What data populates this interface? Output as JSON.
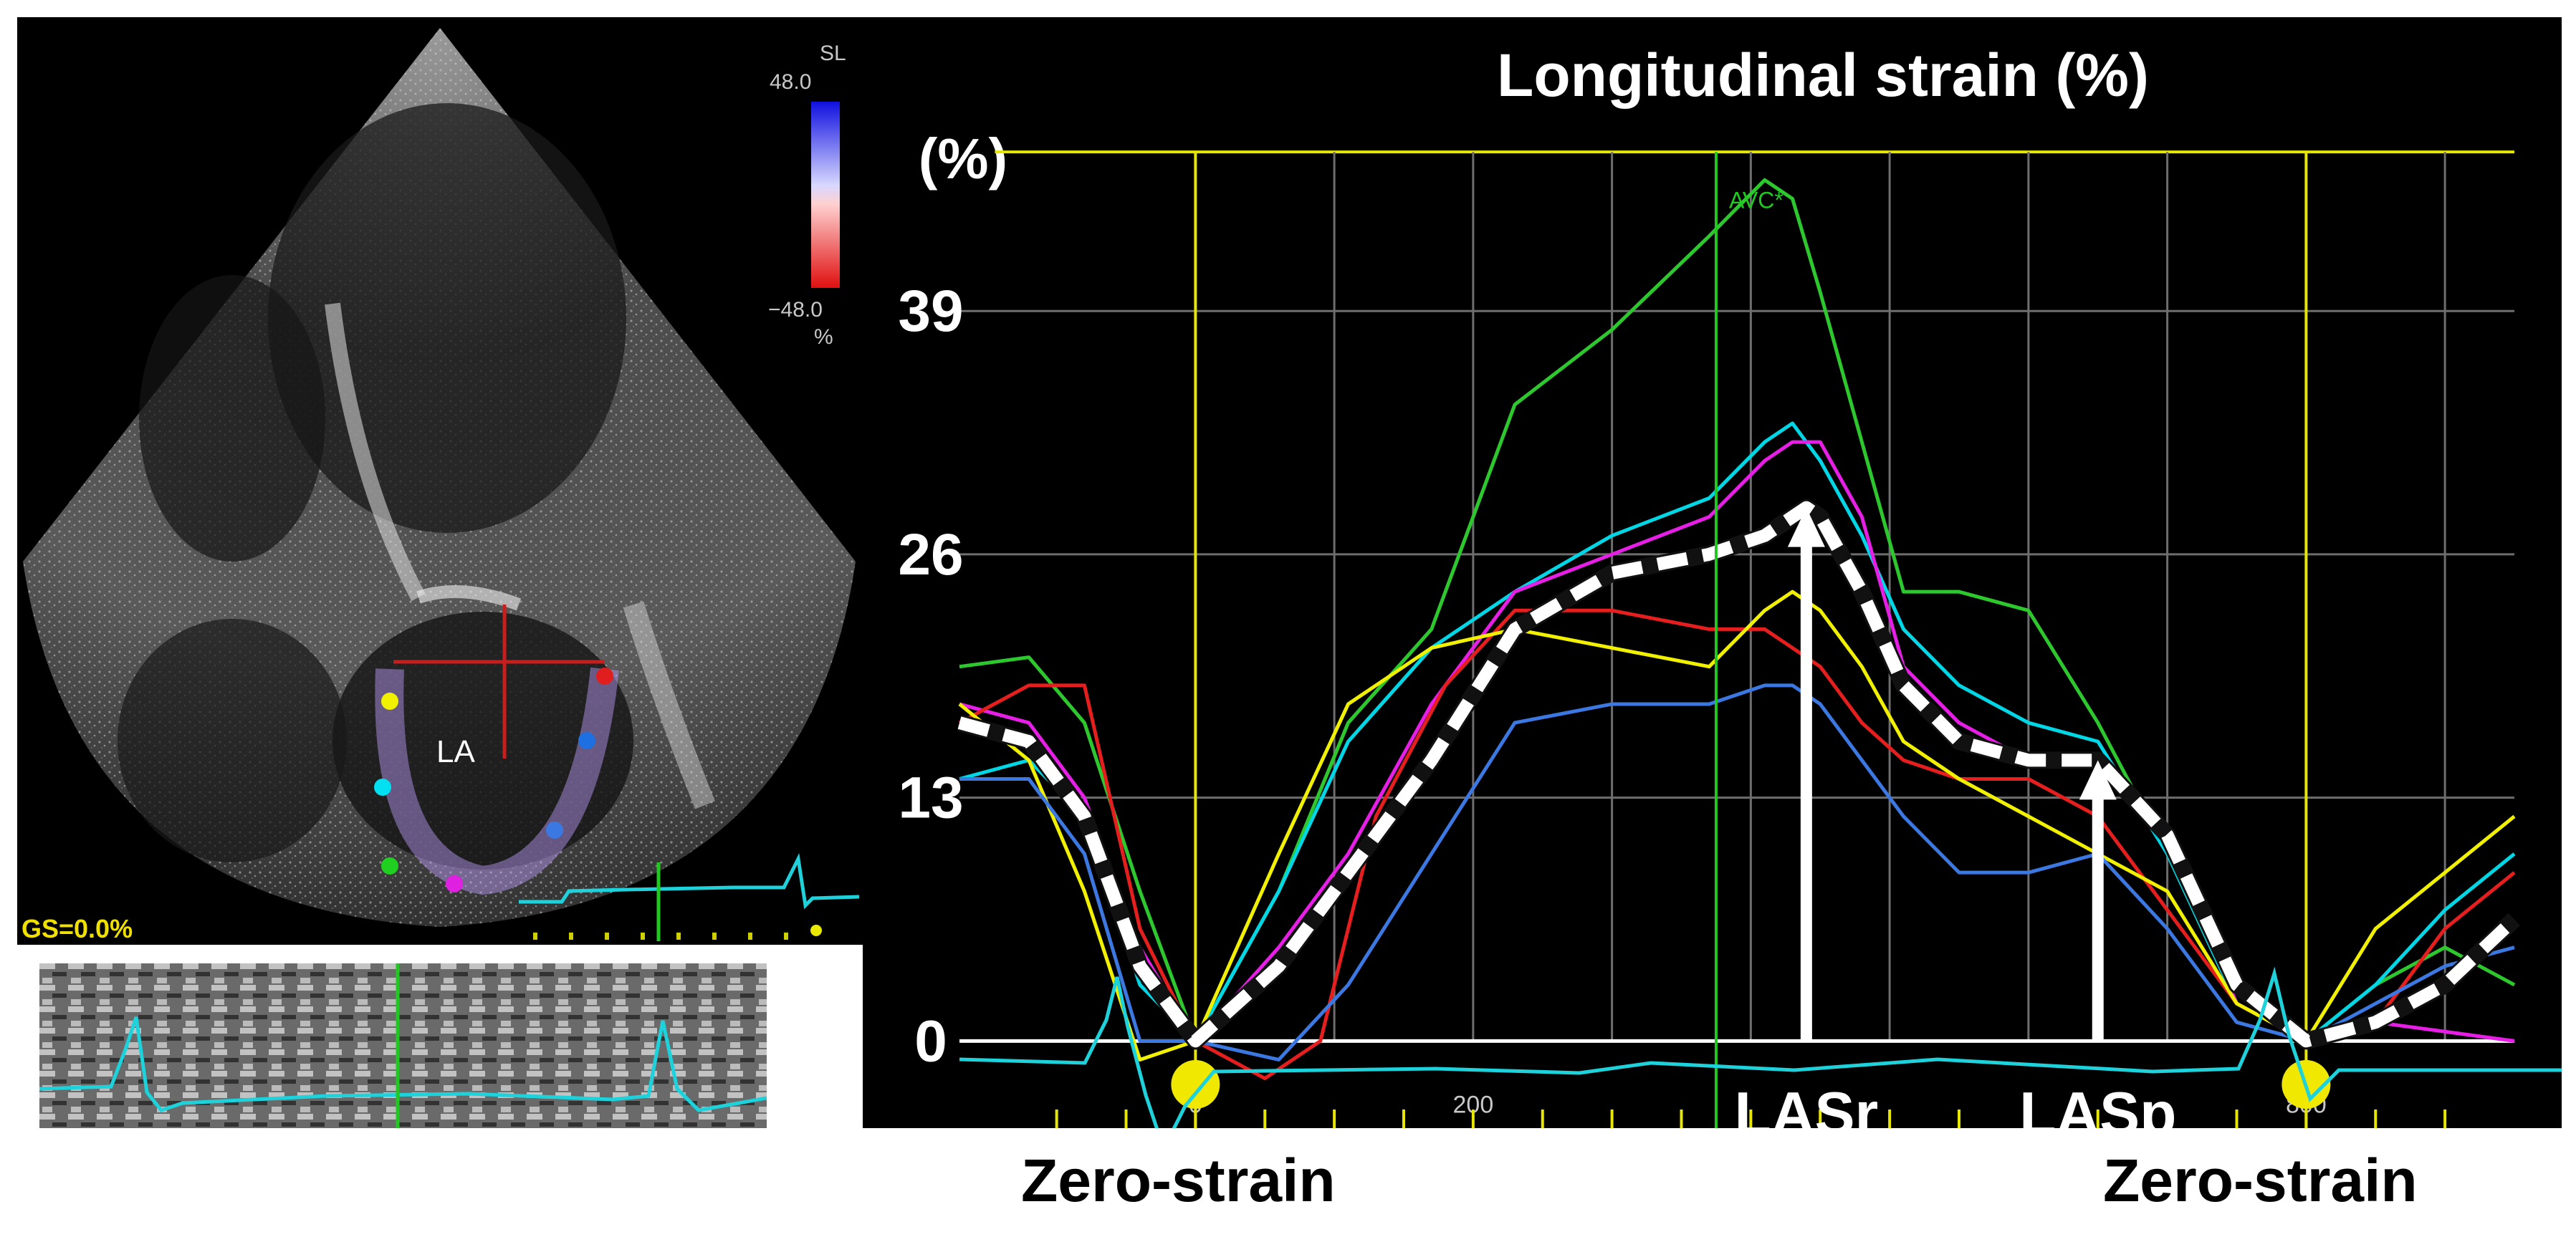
{
  "echo": {
    "colorbar_top_label": "SL",
    "colorbar_max": "48.0",
    "colorbar_min": "−48.0",
    "colorbar_unit": "%",
    "chamber_label": "LA",
    "gs_readout": "GS=0.0%"
  },
  "captions": {
    "left": "Zero-strain",
    "right": "Zero-strain"
  },
  "chart_data": {
    "type": "line",
    "title": "Longitudinal strain (%)",
    "ylabel": "(%)",
    "xlim": [
      -170,
      950
    ],
    "ylim": [
      -5,
      48
    ],
    "y_ticks": [
      0,
      13,
      26,
      39
    ],
    "x_ticks": [
      0,
      200,
      800
    ],
    "grid": true,
    "annotations": [
      {
        "name": "avc-marker",
        "text": "AVC*",
        "x": 375
      },
      {
        "name": "lasr",
        "text": "LASr",
        "x": 440,
        "y_from": 0,
        "y_to": 28.5
      },
      {
        "name": "lasp",
        "text": "LASp",
        "x": 650,
        "y_from": 0,
        "y_to": 15
      }
    ],
    "zero_strain_points": [
      0,
      800
    ],
    "series": [
      {
        "color": "#2dc82d",
        "x": [
          -170,
          -120,
          -80,
          -40,
          0,
          60,
          110,
          170,
          230,
          300,
          370,
          410,
          430,
          450,
          480,
          510,
          550,
          600,
          650,
          700,
          750,
          800,
          850,
          900,
          950
        ],
        "y": [
          20,
          20.5,
          17,
          8,
          0,
          8,
          17,
          22,
          34,
          38,
          43,
          46,
          45,
          40,
          32,
          24,
          24,
          23,
          17,
          10,
          2,
          0,
          3,
          5,
          3
        ]
      },
      {
        "color": "#00d7e6",
        "x": [
          -170,
          -120,
          -80,
          -40,
          0,
          60,
          110,
          170,
          230,
          300,
          370,
          410,
          430,
          450,
          480,
          510,
          550,
          600,
          650,
          700,
          750,
          800,
          850,
          900,
          950
        ],
        "y": [
          14,
          15,
          12,
          3,
          0,
          8,
          16,
          21,
          24,
          27,
          29,
          32,
          33,
          31,
          27,
          22,
          19,
          17,
          16,
          10,
          2,
          0,
          3,
          7,
          10
        ]
      },
      {
        "color": "#e61ee6",
        "x": [
          -170,
          -120,
          -80,
          -40,
          0,
          60,
          110,
          170,
          230,
          300,
          370,
          410,
          430,
          450,
          480,
          510,
          550,
          600,
          650,
          700,
          750,
          800,
          850,
          900,
          950
        ],
        "y": [
          18,
          17,
          13,
          5,
          0,
          5,
          10,
          18,
          24,
          26,
          28,
          31,
          32,
          32,
          28,
          20,
          17,
          15,
          15,
          11,
          2,
          0,
          1,
          0.5,
          0
        ]
      },
      {
        "color": "#e61e1e",
        "x": [
          -170,
          -120,
          -80,
          -40,
          0,
          50,
          90,
          130,
          180,
          230,
          300,
          370,
          410,
          430,
          450,
          480,
          510,
          550,
          600,
          650,
          700,
          750,
          800,
          850,
          900,
          950
        ],
        "y": [
          17,
          19,
          19,
          6,
          0,
          -2,
          0,
          12,
          19,
          23,
          23,
          22,
          22,
          21,
          20,
          17,
          15,
          14,
          14,
          12,
          7,
          2,
          0,
          1,
          6,
          9
        ]
      },
      {
        "color": "#f0f000",
        "x": [
          -170,
          -120,
          -80,
          -40,
          0,
          60,
          110,
          170,
          230,
          300,
          370,
          410,
          430,
          450,
          480,
          510,
          550,
          600,
          650,
          700,
          750,
          800,
          850,
          900,
          950
        ],
        "y": [
          18,
          15,
          8,
          -1,
          0,
          10,
          18,
          21,
          22,
          21,
          20,
          23,
          24,
          23,
          20,
          16,
          14,
          12,
          10,
          8,
          2,
          0,
          6,
          9,
          12
        ]
      },
      {
        "color": "#3c78e1",
        "x": [
          -170,
          -120,
          -80,
          -40,
          0,
          60,
          110,
          170,
          230,
          300,
          370,
          410,
          430,
          450,
          480,
          510,
          550,
          600,
          650,
          700,
          750,
          800,
          850,
          900,
          950
        ],
        "y": [
          14,
          14,
          10,
          0,
          0,
          -1,
          3,
          10,
          17,
          18,
          18,
          19,
          19,
          18,
          15,
          12,
          9,
          9,
          10,
          6,
          1,
          0,
          2,
          4,
          5
        ]
      },
      {
        "color": "#ffffff",
        "dashed": true,
        "x": [
          -170,
          -120,
          -80,
          -40,
          0,
          60,
          110,
          170,
          230,
          300,
          370,
          410,
          430,
          440,
          450,
          480,
          510,
          550,
          600,
          650,
          700,
          750,
          800,
          850,
          900,
          950
        ],
        "y": [
          17,
          16,
          12,
          4,
          0,
          4,
          9,
          15,
          22,
          25,
          26,
          27,
          28,
          28.5,
          28,
          24,
          19,
          16,
          15,
          15,
          11,
          3,
          0,
          1,
          3,
          6.5
        ]
      }
    ]
  }
}
